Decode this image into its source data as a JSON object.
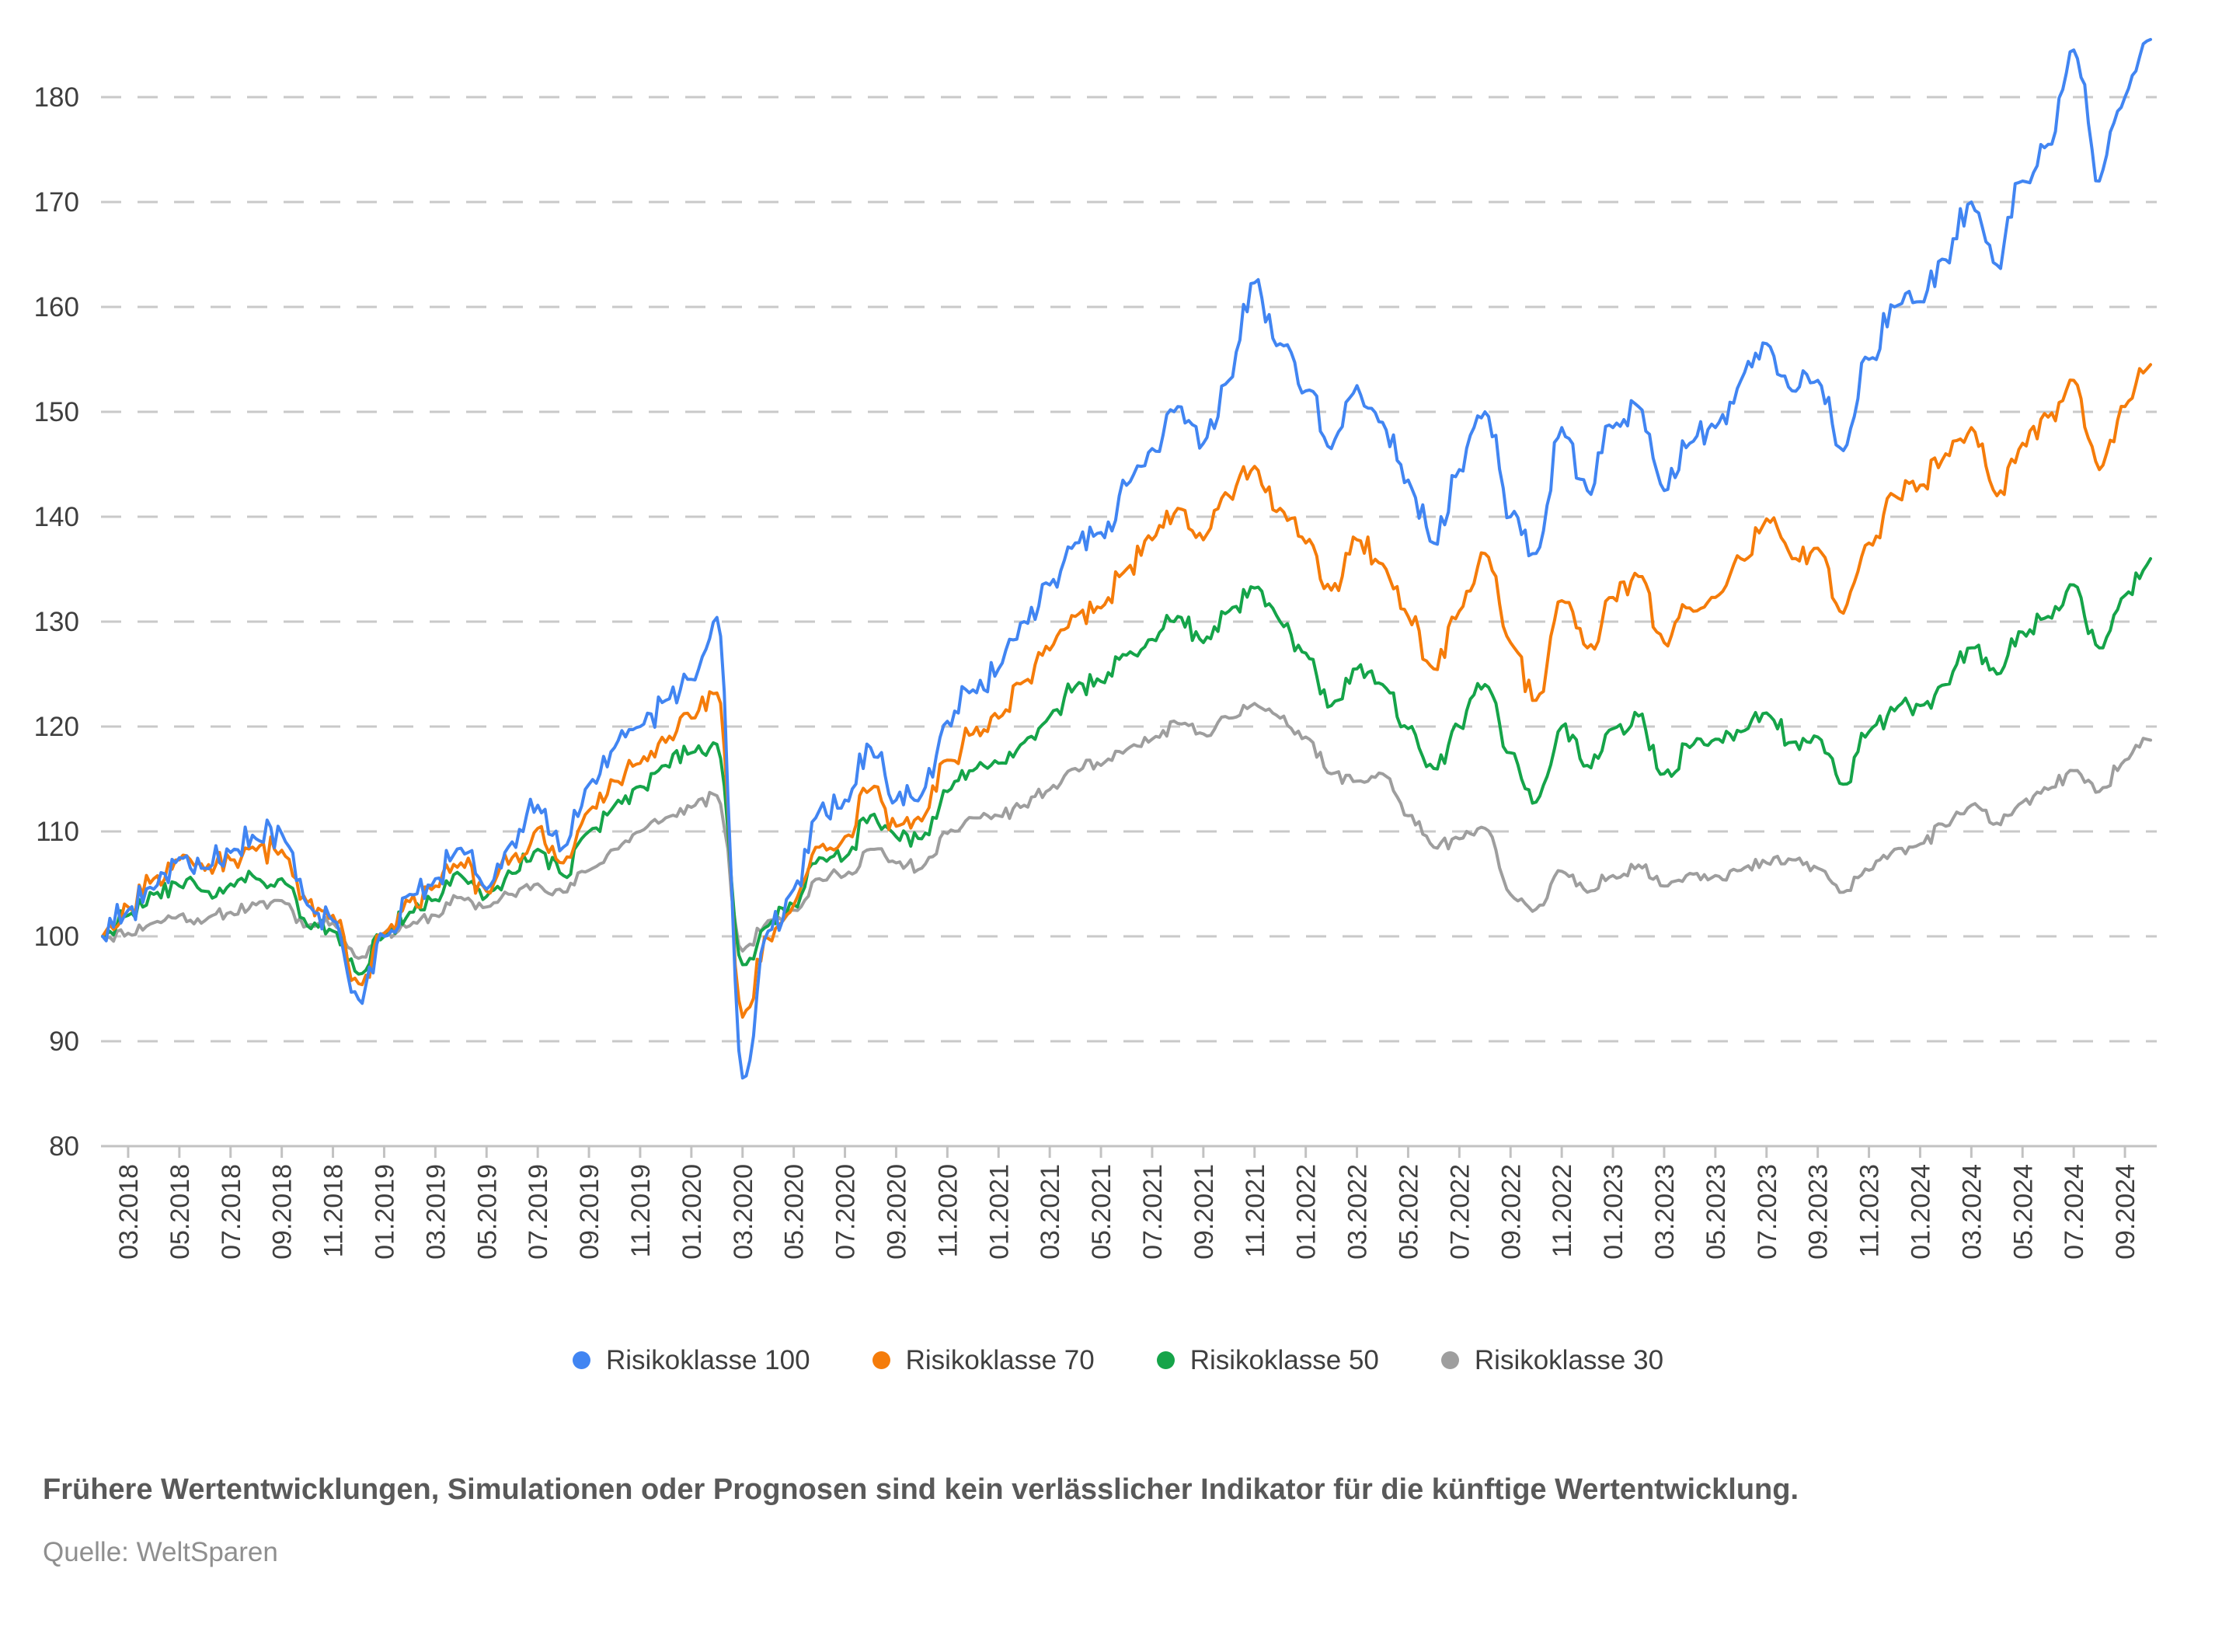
{
  "page": {
    "background": "#ffffff"
  },
  "footer": {
    "disclaimer": "Frühere Wertentwicklungen, Simulationen oder Prognosen sind kein verlässlicher Indikator für die künftige Wertentwicklung.",
    "source": "Quelle: WeltSparen"
  },
  "chart_data": {
    "type": "line",
    "title": "",
    "xlabel": "",
    "ylabel": "",
    "index_base": 100,
    "y_ticks": [
      80,
      90,
      100,
      110,
      120,
      130,
      140,
      150,
      160,
      170,
      180
    ],
    "ylim": [
      80,
      188
    ],
    "grid": {
      "show": true,
      "color": "#c9c9c9",
      "dash": [
        26,
        21
      ],
      "axis_color": "#c2c2c2"
    },
    "label_color": "#3f3f3f",
    "legend_position": "bottom",
    "x_tick_labels": [
      "03.2018",
      "05.2018",
      "07.2018",
      "09.2018",
      "11.2018",
      "01.2019",
      "03.2019",
      "05.2019",
      "07.2019",
      "09.2019",
      "11.2019",
      "01.2020",
      "03.2020",
      "05.2020",
      "07.2020",
      "09.2020",
      "11.2020",
      "01.2021",
      "03.2021",
      "05.2021",
      "07.2021",
      "09.2021",
      "11.2021",
      "01.2022",
      "03.2022",
      "05.2022",
      "07.2022",
      "09.2022",
      "11.2022",
      "01.2023",
      "03.2023",
      "05.2023",
      "07.2023",
      "09.2023",
      "11.2023",
      "01.2024",
      "03.2024",
      "05.2024",
      "07.2024",
      "09.2024"
    ],
    "x_months": [
      "02.2018",
      "03.2018",
      "04.2018",
      "05.2018",
      "06.2018",
      "07.2018",
      "08.2018",
      "09.2018",
      "10.2018",
      "11.2018",
      "12.2018",
      "01.2019",
      "02.2019",
      "03.2019",
      "04.2019",
      "05.2019",
      "06.2019",
      "07.2019",
      "08.2019",
      "09.2019",
      "10.2019",
      "11.2019",
      "12.2019",
      "01.2020",
      "02.2020",
      "03.2020",
      "04.2020",
      "05.2020",
      "06.2020",
      "07.2020",
      "08.2020",
      "09.2020",
      "10.2020",
      "11.2020",
      "12.2020",
      "01.2021",
      "02.2021",
      "03.2021",
      "04.2021",
      "05.2021",
      "06.2021",
      "07.2021",
      "08.2021",
      "09.2021",
      "10.2021",
      "11.2021",
      "12.2021",
      "01.2022",
      "02.2022",
      "03.2022",
      "04.2022",
      "05.2022",
      "06.2022",
      "07.2022",
      "08.2022",
      "09.2022",
      "10.2022",
      "11.2022",
      "12.2022",
      "01.2023",
      "02.2023",
      "03.2023",
      "04.2023",
      "05.2023",
      "06.2023",
      "07.2023",
      "08.2023",
      "09.2023",
      "10.2023",
      "11.2023",
      "12.2023",
      "01.2024",
      "02.2024",
      "03.2024",
      "04.2024",
      "05.2024",
      "06.2024",
      "07.2024",
      "08.2024",
      "09.2024",
      "10.2024"
    ],
    "series": [
      {
        "name": "Risikoklasse 100",
        "color": "#4185F2",
        "jitter": 1.7,
        "values": [
          100,
          102.5,
          104.5,
          107.5,
          106.5,
          108,
          109.3,
          109.8,
          103,
          101.5,
          94,
          100,
          104,
          105.5,
          108.4,
          104.5,
          109,
          112.5,
          108.5,
          114.5,
          118,
          120,
          122.5,
          124.5,
          130.4,
          86.5,
          100.5,
          104.5,
          112,
          113,
          118,
          113,
          113.5,
          120.5,
          123.5,
          125.5,
          130,
          133.5,
          137.5,
          138.5,
          143,
          146.5,
          150.5,
          147,
          153,
          162.3,
          156.5,
          152,
          146.5,
          152.5,
          149,
          143.5,
          137.5,
          144.5,
          150,
          140,
          136.5,
          148.5,
          142.5,
          148.5,
          150.5,
          142.5,
          147,
          148.5,
          153,
          156.5,
          152,
          153,
          146.3,
          155,
          160,
          160.5,
          164.5,
          170,
          164,
          172,
          175.5,
          184.5,
          172,
          180,
          185.5
        ]
      },
      {
        "name": "Risikoklasse 70",
        "color": "#F57C0A",
        "jitter": 1.35,
        "values": [
          100,
          102.8,
          105.5,
          107.3,
          106.3,
          107.3,
          108.2,
          108.2,
          103.2,
          102,
          95.5,
          100.3,
          103.3,
          104.8,
          107,
          104.3,
          107.5,
          110.3,
          107,
          112,
          114.8,
          116.5,
          118.5,
          120.8,
          123.2,
          92.3,
          99.8,
          103,
          108.5,
          109.5,
          114,
          110.5,
          111,
          116.8,
          119.3,
          120.8,
          124.3,
          127.3,
          130.5,
          131.3,
          135,
          137.8,
          140.8,
          137.8,
          142,
          144.8,
          140.8,
          137.5,
          133,
          137.8,
          135.5,
          130.5,
          125.5,
          131,
          136.5,
          128,
          122.5,
          132,
          127.5,
          132.3,
          134.3,
          128,
          131.3,
          132.3,
          136,
          139.8,
          136,
          137,
          130.8,
          137.5,
          142,
          143,
          146,
          148.5,
          142,
          147,
          149.5,
          153,
          144.5,
          150.5,
          154.5
        ]
      },
      {
        "name": "Risikoklasse 50",
        "color": "#15A449",
        "jitter": 1.1,
        "values": [
          100,
          102,
          104,
          104.8,
          104.3,
          105,
          105.5,
          105.5,
          101,
          100.5,
          96.4,
          100,
          102.3,
          103.5,
          105.8,
          103.8,
          106,
          108.3,
          105.8,
          110,
          112.5,
          114.3,
          116.3,
          117.5,
          118.3,
          97.3,
          101,
          103,
          107.5,
          107.5,
          111.5,
          109.5,
          109.3,
          113.8,
          115.8,
          116.5,
          118.5,
          121,
          123.8,
          124.3,
          126.8,
          128.3,
          130.5,
          128,
          131,
          133.2,
          130,
          127,
          122,
          125.5,
          124,
          119.8,
          116,
          120,
          124,
          117.5,
          112.8,
          120,
          116.3,
          119.8,
          121,
          115.5,
          118,
          118.8,
          119.5,
          121.3,
          118.5,
          119,
          114.5,
          119.5,
          121.5,
          122,
          124,
          127.5,
          125,
          129,
          130.5,
          133.5,
          127.5,
          132.5,
          136
        ]
      },
      {
        "name": "Risikoklasse 30",
        "color": "#9E9E9E",
        "jitter": 0.7,
        "values": [
          100,
          100.3,
          101.3,
          102,
          101.5,
          102.3,
          103,
          103.4,
          101,
          101.3,
          97.9,
          100.3,
          101,
          102,
          103.7,
          102.8,
          104,
          105,
          104.2,
          106.3,
          108.3,
          110,
          111.3,
          112.3,
          113.4,
          98.6,
          101.5,
          102.5,
          105.5,
          105.8,
          108.3,
          107,
          106.5,
          109.8,
          111.3,
          111.5,
          112.5,
          114,
          116,
          116.3,
          117.8,
          118.8,
          120.3,
          119.3,
          120.8,
          122.2,
          120.8,
          119,
          115.5,
          114.8,
          115.5,
          111.5,
          108.5,
          109.3,
          110.3,
          104,
          102.6,
          106.2,
          104.2,
          105.8,
          106.8,
          104.8,
          106,
          105.8,
          106.3,
          107,
          107.3,
          106.5,
          104.2,
          106.3,
          108.3,
          108.8,
          110.5,
          112.5,
          110.8,
          112.8,
          114,
          115.8,
          113.8,
          116.8,
          118.7
        ]
      }
    ]
  }
}
